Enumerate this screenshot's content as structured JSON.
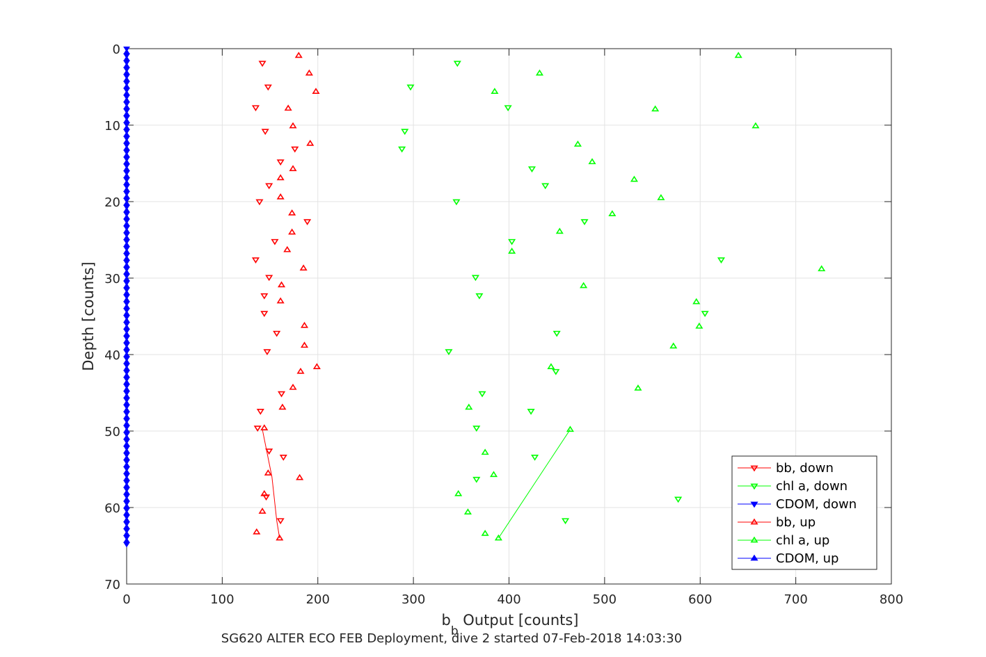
{
  "chart_data": {
    "type": "scatter",
    "title": "",
    "xlabel": {
      "base": "b",
      "sub": "b",
      "rest": " Output [counts]"
    },
    "ylabel": "Depth [counts]",
    "footer": "SG620 ALTER ECO FEB Deployment, dive 2 started 07-Feb-2018 14:03:30",
    "xlim": [
      0,
      800
    ],
    "ylim": [
      0,
      70
    ],
    "y_reversed": true,
    "grid": true,
    "legend_position": "bottom-right",
    "x_ticks": [
      0,
      100,
      200,
      300,
      400,
      500,
      600,
      700,
      800
    ],
    "y_ticks": [
      0,
      10,
      20,
      30,
      40,
      50,
      60,
      70
    ],
    "series": [
      {
        "name": "bb, down",
        "color": "#ff0000",
        "marker": "triangle-down",
        "points": [
          [
            142,
            1.9
          ],
          [
            148,
            5
          ],
          [
            135,
            7.7
          ],
          [
            145,
            10.8
          ],
          [
            176,
            13.1
          ],
          [
            161,
            14.8
          ],
          [
            149,
            17.9
          ],
          [
            139,
            20
          ],
          [
            189,
            22.6
          ],
          [
            155,
            25.2
          ],
          [
            135,
            27.6
          ],
          [
            149,
            29.9
          ],
          [
            144,
            32.3
          ],
          [
            144,
            34.6
          ],
          [
            157,
            37.2
          ],
          [
            147,
            39.6
          ],
          [
            162,
            45.1
          ],
          [
            140,
            47.4
          ],
          [
            137,
            49.6
          ],
          [
            149,
            52.6
          ],
          [
            164,
            53.4
          ],
          [
            146,
            58.6
          ],
          [
            161,
            61.7
          ]
        ]
      },
      {
        "name": "chl a, down",
        "color": "#00ff00",
        "marker": "triangle-down",
        "points": [
          [
            346,
            1.9
          ],
          [
            297,
            5
          ],
          [
            399,
            7.7
          ],
          [
            291,
            10.8
          ],
          [
            288,
            13.1
          ],
          [
            424,
            15.7
          ],
          [
            438,
            17.9
          ],
          [
            345,
            20
          ],
          [
            479,
            22.6
          ],
          [
            403,
            25.2
          ],
          [
            622,
            27.6
          ],
          [
            365,
            29.9
          ],
          [
            369,
            32.3
          ],
          [
            605,
            34.6
          ],
          [
            450,
            37.2
          ],
          [
            337,
            39.6
          ],
          [
            449,
            42.2
          ],
          [
            372,
            45.1
          ],
          [
            423,
            47.4
          ],
          [
            366,
            49.6
          ],
          [
            427,
            53.4
          ],
          [
            366,
            56.3
          ],
          [
            577,
            58.9
          ],
          [
            459,
            61.7
          ]
        ]
      },
      {
        "name": "CDOM, down",
        "color": "#0000ff",
        "marker": "triangle-down",
        "points": []
      },
      {
        "name": "bb, up",
        "color": "#ff0000",
        "marker": "triangle-up",
        "points": [
          [
            180,
            0.9
          ],
          [
            191,
            3.2
          ],
          [
            198,
            5.6
          ],
          [
            169,
            7.8
          ],
          [
            174,
            10.1
          ],
          [
            192,
            12.4
          ],
          [
            174,
            15.7
          ],
          [
            161,
            16.9
          ],
          [
            161,
            19.4
          ],
          [
            173,
            21.5
          ],
          [
            173,
            24
          ],
          [
            168,
            26.3
          ],
          [
            185,
            28.7
          ],
          [
            162,
            30.9
          ],
          [
            161,
            33
          ],
          [
            186,
            36.2
          ],
          [
            186,
            38.8
          ],
          [
            199,
            41.6
          ],
          [
            182,
            42.2
          ],
          [
            174,
            44.3
          ],
          [
            163,
            46.9
          ],
          [
            144,
            49.6
          ],
          [
            148,
            55.5
          ],
          [
            181,
            56.1
          ],
          [
            144,
            58.2
          ],
          [
            142,
            60.5
          ],
          [
            136,
            63.2
          ],
          [
            160,
            64
          ]
        ]
      },
      {
        "name": "chl a, up",
        "color": "#00ff00",
        "marker": "triangle-up",
        "points": [
          [
            640,
            0.9
          ],
          [
            432,
            3.2
          ],
          [
            385,
            5.6
          ],
          [
            553,
            7.9
          ],
          [
            658,
            10.1
          ],
          [
            472,
            12.5
          ],
          [
            487,
            14.8
          ],
          [
            531,
            17.1
          ],
          [
            559,
            19.5
          ],
          [
            508,
            21.6
          ],
          [
            453,
            23.9
          ],
          [
            403,
            26.5
          ],
          [
            727,
            28.8
          ],
          [
            478,
            31
          ],
          [
            596,
            33.1
          ],
          [
            599,
            36.3
          ],
          [
            572,
            38.9
          ],
          [
            444,
            41.6
          ],
          [
            535,
            44.4
          ],
          [
            358,
            46.9
          ],
          [
            464,
            49.8
          ],
          [
            375,
            52.8
          ],
          [
            384,
            55.7
          ],
          [
            347,
            58.2
          ],
          [
            357,
            60.6
          ],
          [
            375,
            63.4
          ],
          [
            389,
            64
          ]
        ]
      },
      {
        "name": "CDOM, up",
        "color": "#0000ff",
        "marker": "triangle-up",
        "points": []
      }
    ],
    "connecting_lines": [
      {
        "color": "#ff0000",
        "points": [
          [
            142,
            49.8
          ],
          [
            152,
            56
          ],
          [
            157,
            61.7
          ],
          [
            160,
            64
          ]
        ]
      },
      {
        "color": "#00ff00",
        "points": [
          [
            464,
            49.8
          ],
          [
            389,
            64
          ]
        ]
      }
    ],
    "cdom_column": {
      "x": 0,
      "depth_range": [
        0,
        65
      ],
      "step": 0.45
    }
  }
}
